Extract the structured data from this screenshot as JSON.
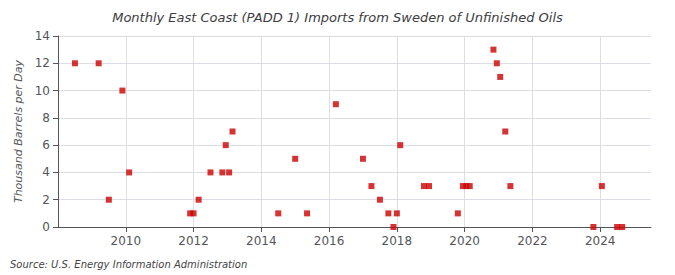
{
  "chart_data": {
    "type": "scatter",
    "title": "Monthly East Coast (PADD 1) Imports from Sweden of Unfinished Oils",
    "ylabel": "Thousand Barrels per Day",
    "annotation": "Source: U.S. Energy Information Administration",
    "x": [
      2008.5,
      2009.2,
      2009.5,
      2009.9,
      2010.1,
      2011.9,
      2012.0,
      2012.15,
      2012.5,
      2012.85,
      2012.95,
      2013.05,
      2013.15,
      2014.5,
      2015.0,
      2015.35,
      2016.2,
      2017.0,
      2017.25,
      2017.5,
      2017.75,
      2017.9,
      2018.0,
      2018.1,
      2018.8,
      2018.95,
      2019.8,
      2019.95,
      2020.05,
      2020.15,
      2020.85,
      2020.95,
      2021.05,
      2021.2,
      2021.35,
      2023.8,
      2024.05,
      2024.5,
      2024.65
    ],
    "values": [
      12,
      12,
      2,
      10,
      4,
      1,
      1,
      2,
      4,
      4,
      6,
      4,
      7,
      1,
      5,
      1,
      9,
      5,
      3,
      2,
      1,
      0,
      1,
      6,
      3,
      3,
      1,
      3,
      3,
      3,
      13,
      12,
      11,
      7,
      3,
      0,
      3,
      0,
      0
    ],
    "color": "#cc0000",
    "marker": "square",
    "xlim": [
      2008.0,
      2025.5
    ],
    "ylim": [
      0,
      14
    ],
    "xticks": [
      2010,
      2012,
      2014,
      2016,
      2018,
      2020,
      2022,
      2024
    ],
    "yticks": [
      0,
      2,
      4,
      6,
      8,
      10,
      12,
      14
    ],
    "grid": true
  }
}
